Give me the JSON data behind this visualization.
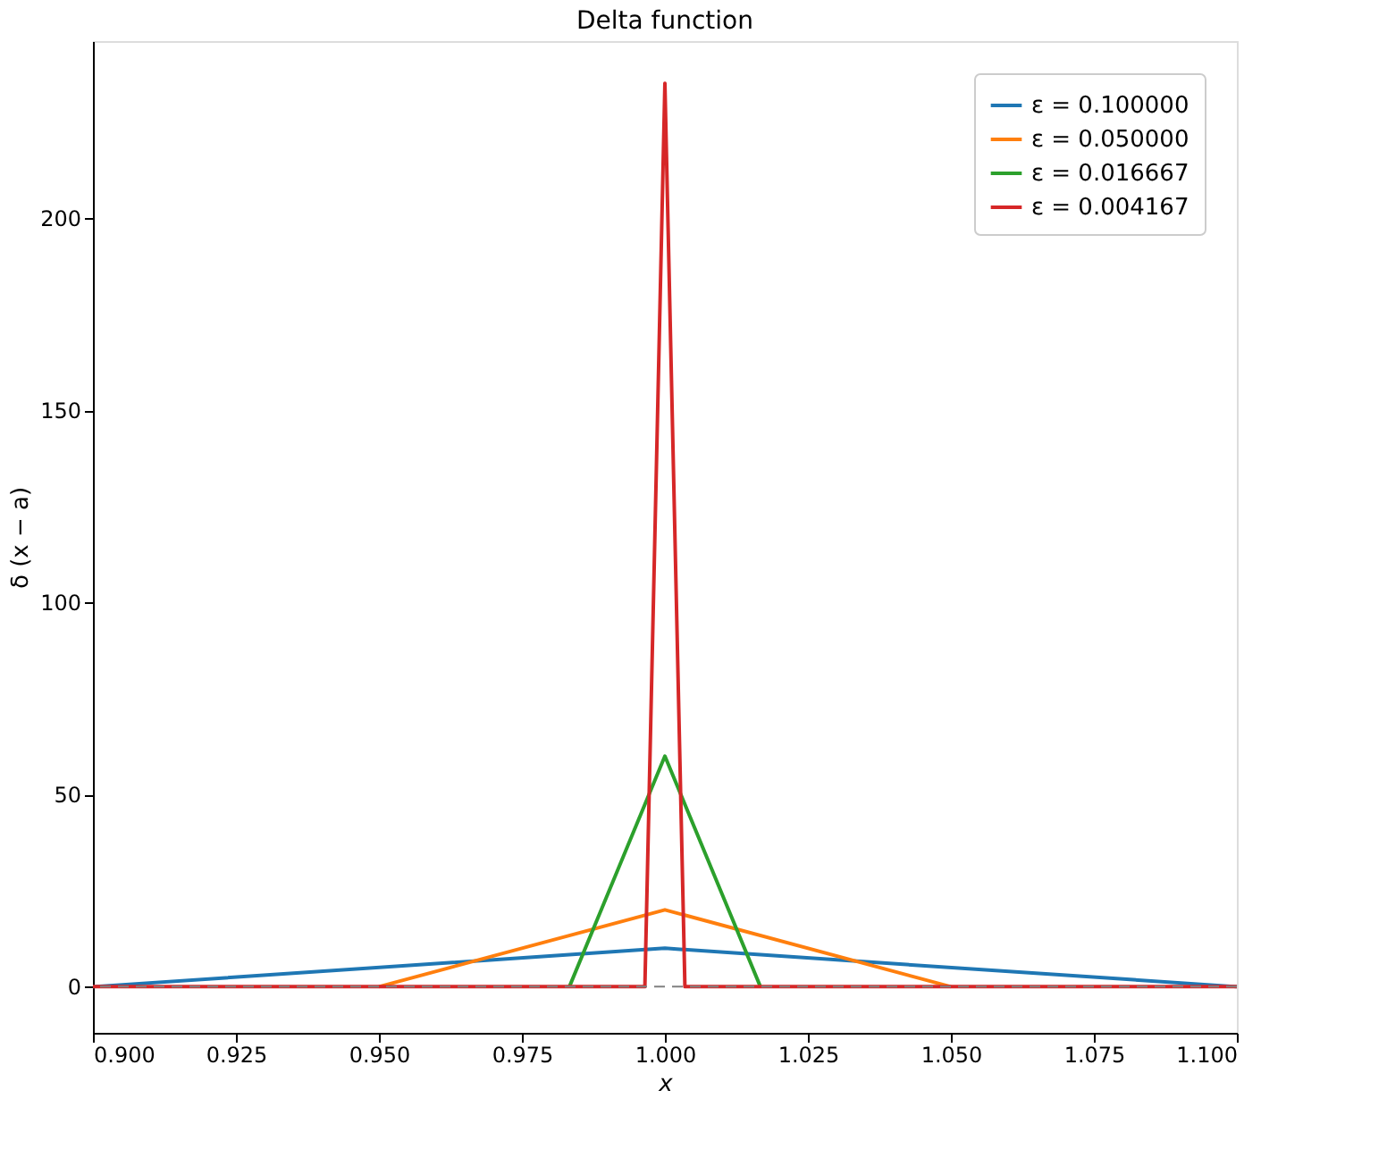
{
  "chart_data": {
    "type": "line",
    "title": "Delta function",
    "xlabel": "x",
    "ylabel": "δ (x − a)",
    "series": [
      {
        "name": "ε = 0.100000",
        "color": "#1f77b4",
        "x": [
          0.9,
          1.0,
          1.1
        ],
        "values": [
          0,
          10,
          0
        ]
      },
      {
        "name": "ε = 0.050000",
        "color": "#ff7f0e",
        "x": [
          0.95,
          1.0,
          1.05
        ],
        "values": [
          0,
          20,
          0
        ]
      },
      {
        "name": "ε = 0.016667",
        "color": "#2ca02c",
        "x": [
          0.9833,
          1.0,
          1.0167
        ],
        "values": [
          0,
          60,
          0
        ]
      },
      {
        "name": "ε = 0.004167",
        "color": "#d62728",
        "x": [
          0.9,
          0.9965,
          1.0,
          1.0035,
          1.1
        ],
        "values": [
          0,
          0,
          235,
          0,
          0
        ]
      }
    ],
    "xlim": [
      0.9,
      1.1
    ],
    "ylim": [
      -12,
      246
    ],
    "xticks": [
      {
        "value": 0.9,
        "label": "0.900"
      },
      {
        "value": 0.925,
        "label": "0.925"
      },
      {
        "value": 0.95,
        "label": "0.950"
      },
      {
        "value": 0.975,
        "label": "0.975"
      },
      {
        "value": 1.0,
        "label": "1.000"
      },
      {
        "value": 1.025,
        "label": "1.025"
      },
      {
        "value": 1.05,
        "label": "1.050"
      },
      {
        "value": 1.075,
        "label": "1.075"
      },
      {
        "value": 1.1,
        "label": "1.100"
      }
    ],
    "yticks": [
      0,
      50,
      100,
      150,
      200
    ],
    "ref_lines": [
      {
        "axis": "y",
        "value": 0,
        "color": "#808080",
        "line_style": "dashed"
      }
    ],
    "grid": false,
    "legend": "top right",
    "line_style": "solid",
    "marker": "none"
  }
}
